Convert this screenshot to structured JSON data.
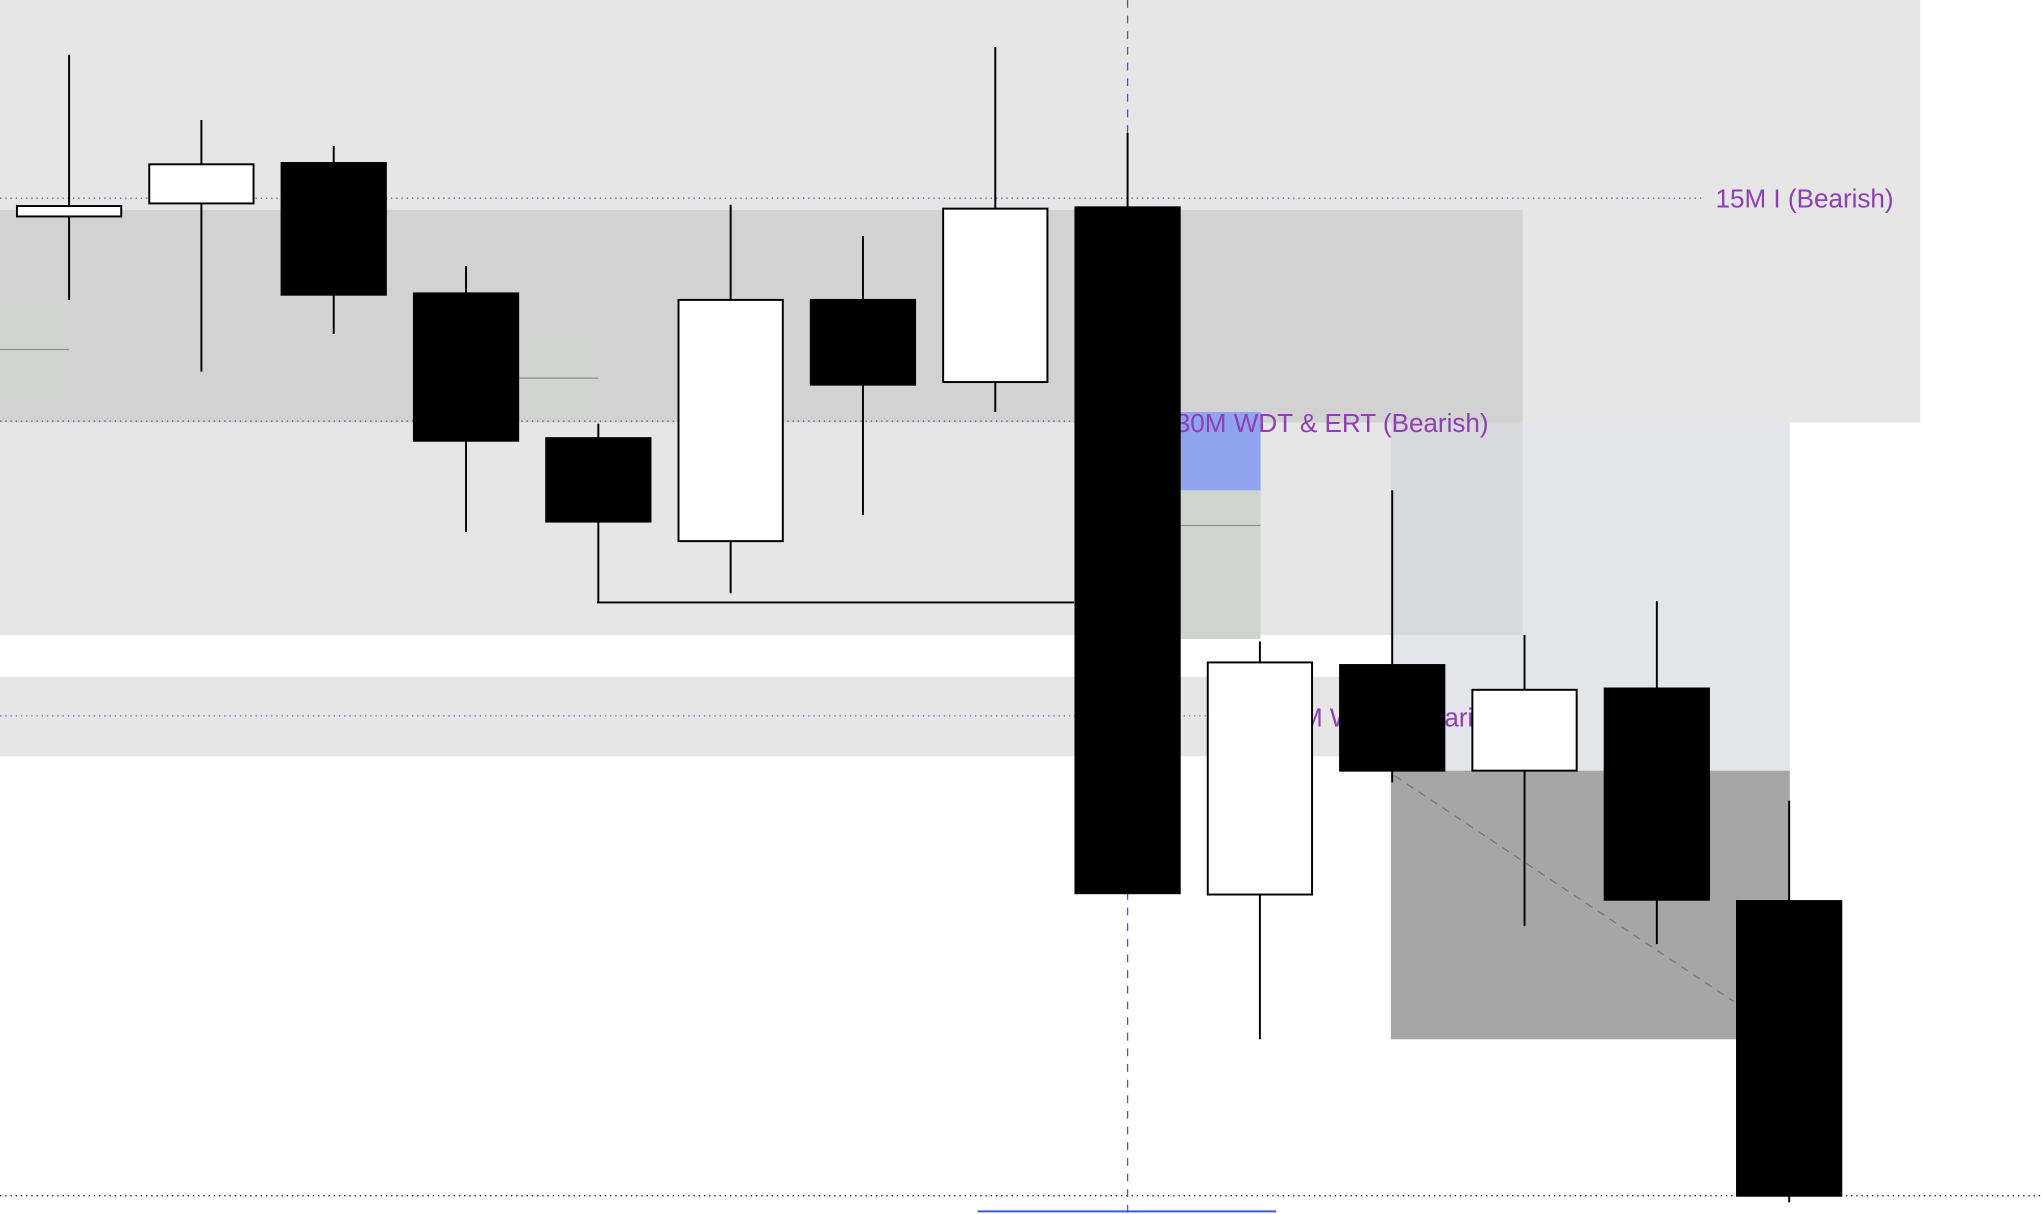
{
  "chart_data": {
    "type": "candlestick",
    "categories": [
      null,
      null,
      null,
      null,
      null,
      null,
      null,
      null,
      null,
      null,
      null,
      null,
      null,
      null
    ],
    "open": [
      765,
      775,
      806,
      706,
      595,
      516,
      701,
      638,
      772,
      245,
      421,
      340,
      403,
      240
    ],
    "close": [
      773,
      805,
      705,
      593,
      531,
      701,
      636,
      771,
      246,
      423,
      340,
      402,
      241,
      14
    ],
    "high": [
      889,
      839,
      819,
      727,
      606,
      774,
      750,
      895,
      829,
      439,
      555,
      444,
      470,
      317
    ],
    "low": [
      701,
      646,
      675,
      523,
      469,
      476,
      536,
      615,
      246,
      134,
      331,
      221,
      207,
      9
    ],
    "up_color": "#ffffff",
    "down_color": "#000000",
    "ylim": [
      0,
      931
    ],
    "annotations": [
      "15M I (Bearish)",
      "30M WDT & ERT (Bearish)",
      "M W",
      "ari"
    ]
  }
}
